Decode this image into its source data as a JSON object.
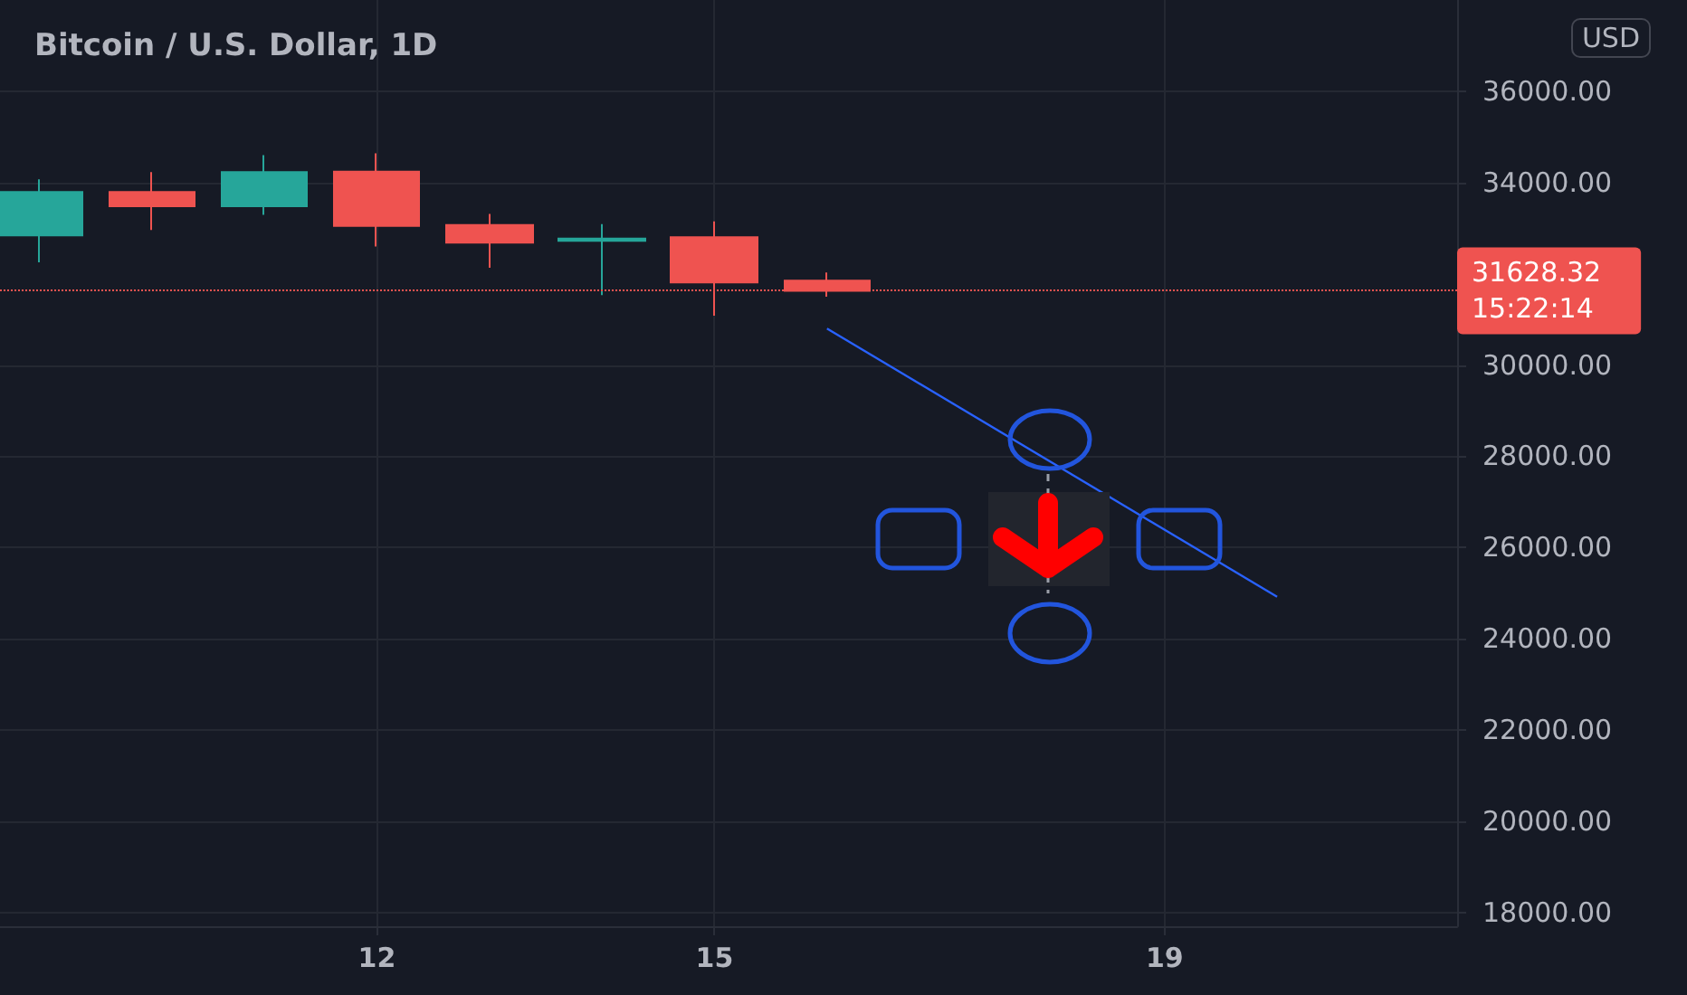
{
  "chart_data": {
    "type": "candlestick",
    "title": "Bitcoin / U.S. Dollar, 1D",
    "series": [
      {
        "x": [
          9,
          10,
          11,
          12,
          13,
          14,
          15,
          16
        ],
        "ohlc": [
          [
            32840,
            34070,
            32250,
            33790
          ],
          [
            33790,
            34230,
            32960,
            33480
          ],
          [
            33480,
            34600,
            33290,
            34230
          ],
          [
            34240,
            34640,
            32600,
            33050
          ],
          [
            33070,
            33310,
            32130,
            32680
          ],
          [
            32720,
            33090,
            31530,
            32770
          ],
          [
            32800,
            33150,
            31080,
            31810
          ],
          [
            31850,
            32030,
            31500,
            31628.32
          ]
        ],
        "colors": [
          "#26a69a",
          "#ef5350",
          "#26a69a",
          "#ef5350",
          "#ef5350",
          "#26a69a",
          "#ef5350",
          "#ef5350"
        ]
      },
      {
        "type": "line",
        "x": [
          16,
          20
        ],
        "values": [
          30800,
          24920
        ],
        "color": "#2962ff"
      }
    ],
    "xlim": [
      8.65,
      21.6
    ],
    "xticks": [
      12,
      15,
      19
    ],
    "ylim": [
      17700,
      38000
    ],
    "yticks": [
      {
        "value": 18000,
        "label": "18000.00"
      },
      {
        "value": 20000,
        "label": "20000.00"
      },
      {
        "value": 22000,
        "label": "22000.00"
      },
      {
        "value": 24000,
        "label": "24000.00"
      },
      {
        "value": 26000,
        "label": "26000.00"
      },
      {
        "value": 28000,
        "label": "28000.00"
      },
      {
        "value": 30000,
        "label": "30000.00"
      },
      {
        "value": 34000,
        "label": "34000.00"
      },
      {
        "value": 36000,
        "label": "36000.00"
      }
    ],
    "ref_lines": [
      {
        "axis": "y",
        "value": 31628.32,
        "label": "31628.32",
        "color": "#ef5350",
        "line_style": "dotted"
      }
    ],
    "annotations": [
      "15:22:14",
      "USD"
    ],
    "grid": true,
    "marker": "none"
  }
}
